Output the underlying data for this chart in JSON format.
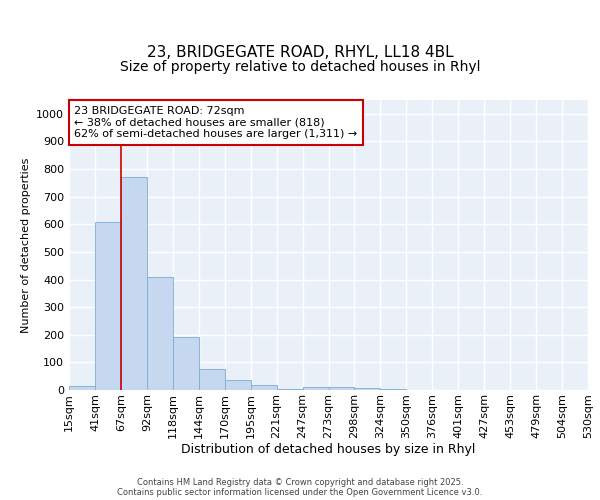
{
  "title1": "23, BRIDGEGATE ROAD, RHYL, LL18 4BL",
  "title2": "Size of property relative to detached houses in Rhyl",
  "xlabel": "Distribution of detached houses by size in Rhyl",
  "ylabel": "Number of detached properties",
  "bin_labels": [
    "15sqm",
    "41sqm",
    "67sqm",
    "92sqm",
    "118sqm",
    "144sqm",
    "170sqm",
    "195sqm",
    "221sqm",
    "247sqm",
    "273sqm",
    "298sqm",
    "324sqm",
    "350sqm",
    "376sqm",
    "401sqm",
    "427sqm",
    "453sqm",
    "479sqm",
    "504sqm",
    "530sqm"
  ],
  "bar_values": [
    15,
    607,
    770,
    410,
    193,
    75,
    38,
    18,
    5,
    10,
    12,
    7,
    2,
    1,
    0,
    0,
    0,
    0,
    0,
    0,
    0
  ],
  "bar_color": "#c5d8f0",
  "bar_edgecolor": "#7aadd4",
  "vline_x": 2,
  "vline_color": "#cc0000",
  "annotation_line1": "23 BRIDGEGATE ROAD: 72sqm",
  "annotation_line2": "← 38% of detached houses are smaller (818)",
  "annotation_line3": "62% of semi-detached houses are larger (1,311) →",
  "annotation_box_facecolor": "white",
  "annotation_box_edgecolor": "#cc0000",
  "ylim": [
    0,
    1050
  ],
  "yticks": [
    0,
    100,
    200,
    300,
    400,
    500,
    600,
    700,
    800,
    900,
    1000
  ],
  "footer_text": "Contains HM Land Registry data © Crown copyright and database right 2025.\nContains public sector information licensed under the Open Government Licence v3.0.",
  "bg_color": "#eaf0f8",
  "grid_color": "white",
  "title1_fontsize": 11,
  "title2_fontsize": 10,
  "xlabel_fontsize": 9,
  "ylabel_fontsize": 8,
  "tick_fontsize": 8,
  "annotation_fontsize": 8,
  "footer_fontsize": 6
}
